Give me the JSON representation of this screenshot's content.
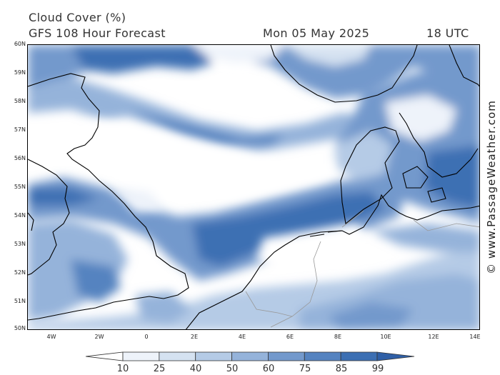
{
  "header": {
    "title": "Cloud Cover (%)",
    "subtitle": "GFS 108 Hour Forecast",
    "date": "Mon 05 May 2025",
    "hour": "18 UTC"
  },
  "watermark": "© www.PassageWeather.com",
  "map": {
    "lat_labels": [
      "60N",
      "59N",
      "58N",
      "57N",
      "56N",
      "55N",
      "54N",
      "53N",
      "52N",
      "51N",
      "50N"
    ],
    "lon_labels": [
      "4W",
      "2W",
      "0",
      "2E",
      "4E",
      "6E",
      "8E",
      "10E",
      "12E",
      "14E"
    ],
    "lat_range": [
      50,
      60
    ],
    "lon_range": [
      -5,
      14
    ],
    "land_outline_color": "#000000",
    "border_color": "#999999"
  },
  "legend": {
    "levels": [
      "10",
      "25",
      "40",
      "50",
      "60",
      "75",
      "85",
      "99"
    ],
    "colors": [
      "#ffffff",
      "#eef3fa",
      "#d5e2f1",
      "#b5cbe6",
      "#95b3da",
      "#7399cc",
      "#5583c0",
      "#3c6fb3",
      "#2f5fa6"
    ]
  }
}
